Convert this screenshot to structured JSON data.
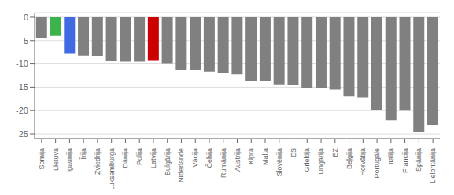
{
  "chart_data": {
    "type": "bar",
    "categories": [
      "Somija",
      "Lietuva",
      "Igaunija",
      "Īrija",
      "Zviedrija",
      "Luksemburga",
      "Dānija",
      "Polija",
      "Latvija",
      "Bulgārija",
      "Nīderlande",
      "Vācija",
      "Čehija",
      "Rumānija",
      "Austrija",
      "Kipra",
      "Malta",
      "Slovēnija",
      "ES",
      "Griekija",
      "Ungārija",
      "EZ",
      "Beļģija",
      "Horvātija",
      "Portugāle",
      "Itālija",
      "Francija",
      "Spānija",
      "Lielbritānija"
    ],
    "values": [
      -4.5,
      -4.0,
      -7.8,
      -8.2,
      -8.3,
      -9.4,
      -9.5,
      -9.5,
      -9.3,
      -10.0,
      -11.4,
      -11.3,
      -11.7,
      -11.9,
      -12.3,
      -13.6,
      -13.7,
      -14.4,
      -14.5,
      -15.2,
      -15.1,
      -15.5,
      -17.0,
      -17.2,
      -19.8,
      -22.0,
      -20.0,
      -24.5,
      -23.0
    ],
    "colors": [
      "#808080",
      "#3cb44b",
      "#4169e1",
      "#808080",
      "#808080",
      "#808080",
      "#808080",
      "#808080",
      "#cc0000",
      "#808080",
      "#808080",
      "#808080",
      "#808080",
      "#808080",
      "#808080",
      "#808080",
      "#808080",
      "#808080",
      "#808080",
      "#808080",
      "#808080",
      "#808080",
      "#808080",
      "#808080",
      "#808080",
      "#808080",
      "#808080",
      "#808080",
      "#808080"
    ],
    "ylim": [
      -26,
      1
    ],
    "yticks": [
      0,
      -5,
      -10,
      -15,
      -20,
      -25
    ],
    "grid": true
  }
}
